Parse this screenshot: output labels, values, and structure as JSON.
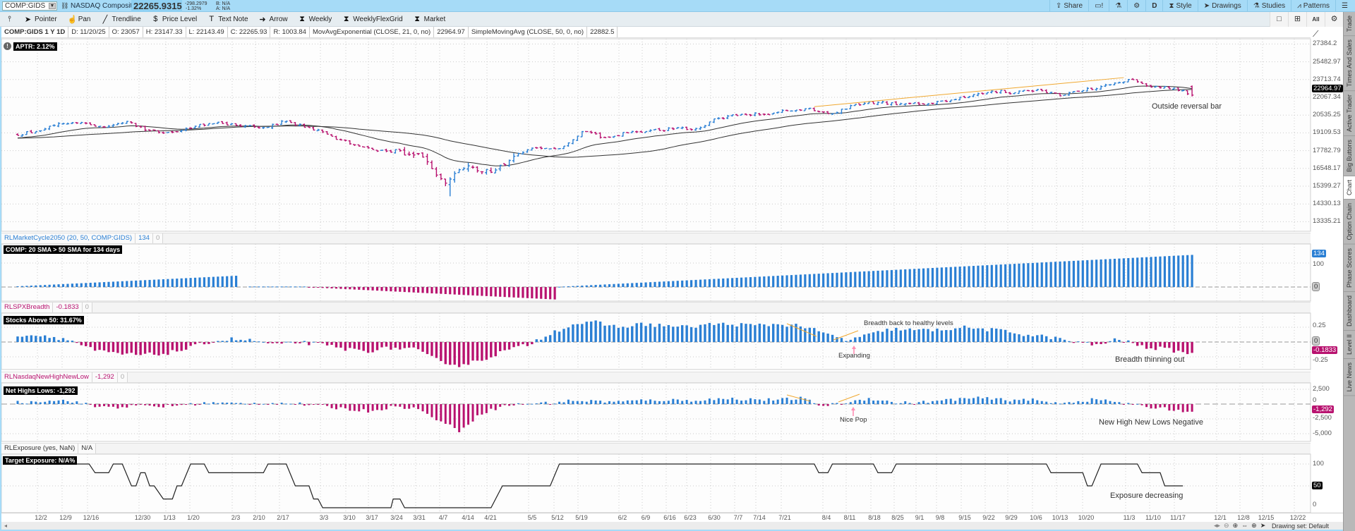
{
  "topbar": {
    "symbol": "COMP:GIDS",
    "description": "NASDAQ Composite",
    "last": "22265.9315",
    "change": "-298.2979",
    "change_pct": "-1.32%",
    "bid": "B: N/A",
    "ask": "A: N/A",
    "share": "Share",
    "period": "D",
    "style": "Style",
    "drawings": "Drawings",
    "studies": "Studies",
    "patterns": "Patterns"
  },
  "toolbar": {
    "tools": [
      {
        "label": "",
        "icon": "pin-icon",
        "glyph": "⫯"
      },
      {
        "label": "Pointer",
        "icon": "pointer-icon",
        "glyph": "➤"
      },
      {
        "label": "Pan",
        "icon": "pan-hand-icon",
        "glyph": "☝"
      },
      {
        "label": "Trendline",
        "icon": "trendline-icon",
        "glyph": "╱"
      },
      {
        "label": "Price Level",
        "icon": "price-level-icon",
        "glyph": "$"
      },
      {
        "label": "Text Note",
        "icon": "text-note-icon",
        "glyph": "T"
      },
      {
        "label": "Arrow",
        "icon": "arrow-icon",
        "glyph": "➜"
      },
      {
        "label": "Weekly",
        "icon": "flexgrid-icon",
        "glyph": "⧗"
      },
      {
        "label": "WeeklyFlexGrid",
        "icon": "flexgrid-icon",
        "glyph": "⧗"
      },
      {
        "label": "Market",
        "icon": "flexgrid-icon",
        "glyph": "⧗"
      }
    ],
    "right_controls": [
      {
        "name": "single-layout-button",
        "glyph": "□"
      },
      {
        "name": "grid-layout-button",
        "glyph": "⊞"
      },
      {
        "name": "all-button",
        "glyph": "All"
      },
      {
        "name": "chart-settings-button",
        "glyph": "⚙"
      }
    ]
  },
  "info": {
    "title": "COMP:GIDS 1 Y 1D",
    "date": "D: 11/20/25",
    "open": "O: 23057",
    "high": "H: 23147.33",
    "low": "L: 22143.49",
    "close": "C: 22265.93",
    "range": "R: 1003.84",
    "ema_label": "MovAvgExponential (CLOSE, 21, 0, no)",
    "ema_value": "22964.97",
    "sma_label": "SimpleMovingAvg (CLOSE, 50, 0, no)",
    "sma_value": "22882.5"
  },
  "price_panel": {
    "aptr": "APTR: 2.12%",
    "badge": "22964.97",
    "annotation": "Outside reversal bar"
  },
  "cycle_panel": {
    "name": "RLMarketCycle2050 (20, 50, COMP:GIDS)",
    "value": "134",
    "zero": "0",
    "label": "COMP: 20 SMA > 50 SMA for 134 days",
    "badge": "134",
    "zero_badge": "0"
  },
  "breadth_panel": {
    "name": "RLSPXBreadth",
    "value": "-0.1833",
    "zero": "0",
    "label": "Stocks Above 50: 31.67%",
    "badge": "-0.1833",
    "zero_badge": "0",
    "annotations": {
      "healthy": "Breadth back to healthy levels",
      "expanding": "Expanding",
      "thinning": "Breadth thinning out"
    }
  },
  "nhnl_panel": {
    "name": "RLNasdaqNewHighNewLow",
    "value": "-1,292",
    "zero": "0",
    "label": "Net Highs Lows: -1,292",
    "badge": "-1,292",
    "annotations": {
      "pop": "Nice Pop",
      "negative": "New High New Lows Negative"
    }
  },
  "exposure_panel": {
    "name": "RLExposure (yes, NaN)",
    "value": "N/A",
    "label": "Target Exposure: N/A%",
    "badge": "50",
    "annotation": "Exposure decreasing"
  },
  "side_tabs": [
    {
      "label": "Trade",
      "active": false
    },
    {
      "label": "Times And Sales",
      "active": false
    },
    {
      "label": "Active Trader",
      "active": false
    },
    {
      "label": "Big Buttons",
      "active": false
    },
    {
      "label": "Chart",
      "active": true
    },
    {
      "label": "Option Chain",
      "active": false
    },
    {
      "label": "Phase Scores",
      "active": false
    },
    {
      "label": "Dashboard",
      "active": false
    },
    {
      "label": "Level II",
      "active": false
    },
    {
      "label": "Live News",
      "active": false
    }
  ],
  "status": {
    "drawing_set": "Drawing set: Default"
  },
  "colors": {
    "up": "#2a7fd4",
    "down": "#b8126f",
    "ma": "#333333",
    "trend": "#f0a830",
    "arrow": "#ff8fb3",
    "topbar": "#a6dbf7"
  },
  "chart_data": {
    "type": "ohlc-with-indicators",
    "title": "COMP:GIDS 1 Y 1D",
    "x_labels": [
      "12/2",
      "12/9",
      "12/16",
      "12/30",
      "1/13",
      "1/20",
      "2/3",
      "2/10",
      "2/17",
      "3/3",
      "3/10",
      "3/17",
      "3/24",
      "3/31",
      "4/7",
      "4/14",
      "4/21",
      "5/5",
      "5/12",
      "5/19",
      "6/2",
      "6/9",
      "6/16",
      "6/23",
      "6/30",
      "7/7",
      "7/14",
      "7/21",
      "8/4",
      "8/11",
      "8/18",
      "8/25",
      "9/1",
      "9/8",
      "9/15",
      "9/22",
      "9/29",
      "10/6",
      "10/13",
      "10/20",
      "11/3",
      "11/10",
      "11/17",
      "12/1",
      "12/8",
      "12/15",
      "12/22"
    ],
    "price": {
      "scale": "log",
      "y_ticks": [
        27384.2,
        25482.97,
        23713.74,
        22067.34,
        20535.25,
        19109.53,
        17782.79,
        16548.17,
        15399.27,
        14330.13,
        13335.21
      ],
      "start_close": 18950,
      "ma_seed": 18700,
      "weekly_closes_from": "11/25/24",
      "weekly_closes": [
        19220,
        19860,
        19930,
        19570,
        20020,
        19280,
        19160,
        19630,
        19950,
        19630,
        19520,
        20030,
        19520,
        18850,
        18200,
        17750,
        17780,
        17320,
        15590,
        16720,
        16290,
        17380,
        17980,
        17930,
        19210,
        18740,
        19110,
        19300,
        19410,
        19450,
        20270,
        20600,
        20590,
        20900,
        21110,
        20650,
        21450,
        21620,
        21500,
        21460,
        21700,
        22140,
        22630,
        22480,
        22780,
        22200,
        22680,
        23200,
        23720,
        23000,
        22900,
        22265.93
      ],
      "last_week_days": 4,
      "high_vol_weeks": [
        16,
        17,
        18,
        19,
        20
      ],
      "crash_low": {
        "bar": 95,
        "low": 14780
      },
      "last_bar": {
        "date": "11/20/25",
        "open": 23057,
        "high": 23147.33,
        "low": 22143.49,
        "close": 22265.93
      },
      "studies": [
        {
          "name": "MovAvgExponential",
          "length": 21,
          "last": 22964.97
        },
        {
          "name": "SimpleMovingAvg",
          "length": 50,
          "last": 22882.5
        }
      ],
      "trendline": {
        "from": {
          "bar": 175,
          "price": 21250
        },
        "to": {
          "bar": 243,
          "price": 23900
        }
      }
    },
    "market_cycle": {
      "y_ticks": [
        {
          "value": 100,
          "label": "100"
        }
      ],
      "segments": [
        {
          "start": 0,
          "end": 48,
          "from": 3,
          "to": 47
        },
        {
          "start": 51,
          "end": 63,
          "from": 2,
          "to": 2
        },
        {
          "start": 64,
          "end": 118,
          "from": -1,
          "to": -52
        },
        {
          "start": 119,
          "end": 258,
          "from": 1,
          "to": 134
        }
      ]
    },
    "breadth": {
      "y_ticks": [
        {
          "value": 0.25,
          "label": "0.25"
        },
        {
          "value": -0.25,
          "label": "-0.25"
        }
      ],
      "weekly": [
        0.12,
        0.1,
        0.02,
        -0.15,
        -0.2,
        -0.22,
        -0.2,
        -0.12,
        0.0,
        0.05,
        0.02,
        -0.05,
        0.0,
        -0.05,
        -0.12,
        -0.15,
        -0.1,
        -0.12,
        -0.3,
        -0.4,
        -0.3,
        -0.15,
        -0.05,
        0.15,
        0.3,
        0.33,
        0.25,
        0.3,
        0.28,
        0.25,
        0.3,
        0.3,
        0.28,
        0.3,
        0.28,
        0.15,
        0.03,
        0.12,
        0.22,
        0.2,
        0.2,
        0.25,
        0.22,
        0.18,
        0.12,
        0.08,
        0.0,
        -0.05,
        0.05,
        -0.08,
        -0.12,
        -0.1833
      ],
      "last": -0.1833
    },
    "nhnl": {
      "y_ticks": [
        {
          "value": 2500,
          "label": "2,500"
        },
        {
          "value": 0,
          "label": "0"
        },
        {
          "value": -2500,
          "label": "-2,500"
        },
        {
          "value": -5000,
          "label": "-5,000"
        }
      ],
      "weekly": [
        300,
        700,
        500,
        -400,
        -500,
        -300,
        -400,
        -100,
        200,
        100,
        100,
        200,
        0,
        -400,
        -800,
        -1200,
        -500,
        -600,
        -2500,
        -4500,
        -1500,
        -300,
        100,
        200,
        600,
        500,
        400,
        600,
        700,
        600,
        800,
        900,
        800,
        700,
        1000,
        -300,
        200,
        1000,
        300,
        200,
        500,
        900,
        1000,
        700,
        800,
        200,
        400,
        800,
        300,
        -400,
        -700,
        -1292
      ],
      "last": -1292
    },
    "exposure": {
      "y_ticks": [
        {
          "value": 100,
          "label": "100"
        },
        {
          "value": 0,
          "label": "0"
        }
      ],
      "points": [
        [
          0,
          100
        ],
        [
          15.7,
          100
        ],
        [
          17,
          80
        ],
        [
          20,
          80
        ],
        [
          21,
          100
        ],
        [
          23,
          100
        ],
        [
          25,
          50
        ],
        [
          26,
          50
        ],
        [
          27,
          80
        ],
        [
          28,
          80
        ],
        [
          29,
          50
        ],
        [
          30,
          50
        ],
        [
          32,
          20
        ],
        [
          34,
          20
        ],
        [
          35,
          50
        ],
        [
          36,
          50
        ],
        [
          38,
          100
        ],
        [
          41,
          100
        ],
        [
          42,
          80
        ],
        [
          54,
          80
        ],
        [
          55,
          100
        ],
        [
          59,
          100
        ],
        [
          61,
          50
        ],
        [
          64,
          50
        ],
        [
          65,
          20
        ],
        [
          66,
          20
        ],
        [
          67,
          0
        ],
        [
          82,
          0
        ],
        [
          82.5,
          20
        ],
        [
          84,
          20
        ],
        [
          85,
          0
        ],
        [
          104,
          0
        ],
        [
          106.5,
          50
        ],
        [
          117,
          50
        ],
        [
          119,
          100
        ],
        [
          175,
          100
        ],
        [
          176,
          80
        ],
        [
          178,
          80
        ],
        [
          179,
          100
        ],
        [
          188,
          100
        ],
        [
          189,
          80
        ],
        [
          192,
          80
        ],
        [
          193,
          100
        ],
        [
          226,
          100
        ],
        [
          227,
          80
        ],
        [
          234,
          80
        ],
        [
          235,
          50
        ],
        [
          236,
          50
        ],
        [
          238,
          100
        ],
        [
          246,
          100
        ],
        [
          247,
          80
        ],
        [
          251,
          80
        ],
        [
          252,
          50
        ],
        [
          256,
          50
        ]
      ]
    }
  }
}
